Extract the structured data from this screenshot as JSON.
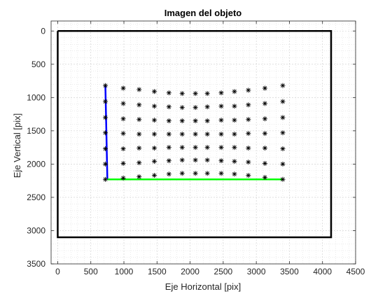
{
  "chart_data": {
    "type": "scatter",
    "title": "Imagen del objeto",
    "xlabel": "Eje Horizontal [pix]",
    "ylabel": "Eje Vertical [pix]",
    "xlim": [
      -100,
      4500
    ],
    "ylim": [
      3500,
      -150
    ],
    "y_reversed": true,
    "xticks": [
      0,
      500,
      1000,
      1500,
      2000,
      2500,
      3000,
      3500,
      4000,
      4500
    ],
    "yticks": [
      0,
      500,
      1000,
      1500,
      2000,
      2500,
      3000,
      3500
    ],
    "grid": true,
    "minor_grid": true,
    "frame": {
      "x": [
        0,
        4130,
        4130,
        0,
        0
      ],
      "y": [
        0,
        0,
        3100,
        3100,
        0
      ],
      "color": "#000000"
    },
    "vertical_axis_line": {
      "x": [
        720,
        750
      ],
      "y": [
        820,
        2230
      ],
      "color": "#0000ff"
    },
    "horizontal_axis_line": {
      "x": [
        750,
        3400
      ],
      "y": [
        2230,
        2230
      ],
      "color": "#00ff00"
    },
    "points": {
      "marker": "*",
      "color": "#000000",
      "columns_x": [
        720,
        990,
        1230,
        1460,
        1680,
        1880,
        2080,
        2260,
        2470,
        2670,
        2880,
        3130,
        3400
      ],
      "rows_y": [
        [
          820,
          860,
          880,
          910,
          930,
          940,
          940,
          940,
          930,
          910,
          890,
          860,
          820
        ],
        [
          1060,
          1090,
          1110,
          1130,
          1140,
          1150,
          1150,
          1140,
          1130,
          1130,
          1110,
          1090,
          1060
        ],
        [
          1300,
          1320,
          1330,
          1340,
          1350,
          1350,
          1350,
          1350,
          1340,
          1340,
          1330,
          1320,
          1300
        ],
        [
          1530,
          1540,
          1550,
          1550,
          1550,
          1550,
          1550,
          1550,
          1550,
          1550,
          1540,
          1540,
          1530
        ],
        [
          1770,
          1770,
          1760,
          1760,
          1750,
          1750,
          1750,
          1750,
          1750,
          1750,
          1760,
          1760,
          1770
        ],
        [
          2000,
          1990,
          1980,
          1960,
          1950,
          1940,
          1940,
          1940,
          1950,
          1960,
          1970,
          1990,
          2000
        ],
        [
          2230,
          2210,
          2190,
          2170,
          2150,
          2140,
          2140,
          2140,
          2140,
          2150,
          2170,
          2200,
          2230
        ]
      ]
    }
  }
}
